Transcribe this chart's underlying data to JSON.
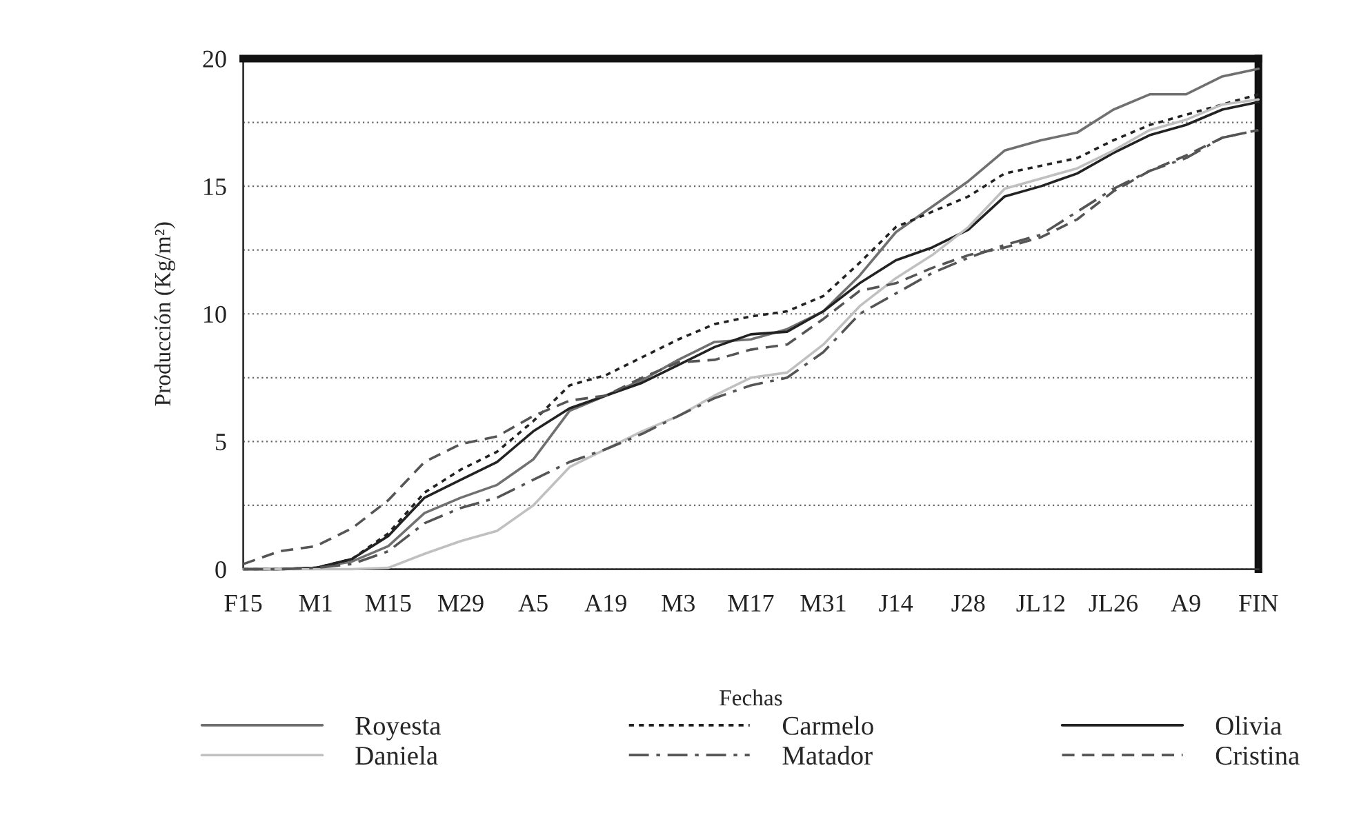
{
  "chart_data": {
    "type": "line",
    "xlabel": "Fechas",
    "ylabel": "Producción (Kg/m²)",
    "categories": [
      "F15",
      null,
      "M1",
      null,
      "M15",
      null,
      "M29",
      null,
      "A5",
      null,
      "A19",
      null,
      "M3",
      null,
      "M17",
      null,
      "M31",
      null,
      "J14",
      null,
      "J28",
      null,
      "JL12",
      null,
      "JL26",
      null,
      "A9",
      null,
      "FIN"
    ],
    "series": [
      {
        "name": "Royesta",
        "color": "#707070",
        "line_style": "solid",
        "values": [
          0,
          0,
          0.05,
          0.3,
          0.9,
          2.2,
          2.8,
          3.3,
          4.3,
          6.2,
          6.8,
          7.4,
          8.2,
          8.9,
          9.0,
          9.4,
          10.1,
          11.5,
          13.2,
          14.2,
          15.2,
          16.4,
          16.8,
          17.1,
          18.0,
          18.6,
          18.6,
          19.3,
          19.6
        ]
      },
      {
        "name": "Carmelo",
        "color": "#222222",
        "line_style": "dotted",
        "values": [
          0,
          0,
          0.05,
          0.4,
          1.4,
          3.0,
          3.9,
          4.6,
          5.8,
          7.2,
          7.6,
          8.3,
          9.0,
          9.6,
          9.9,
          10.1,
          10.7,
          12.0,
          13.4,
          14.0,
          14.6,
          15.5,
          15.8,
          16.1,
          16.8,
          17.4,
          17.8,
          18.2,
          18.6
        ]
      },
      {
        "name": "Olivia",
        "color": "#222222",
        "line_style": "solid",
        "values": [
          0,
          0,
          0.05,
          0.4,
          1.3,
          2.8,
          3.5,
          4.2,
          5.4,
          6.3,
          6.8,
          7.3,
          8.0,
          8.7,
          9.2,
          9.3,
          10.1,
          11.2,
          12.1,
          12.6,
          13.3,
          14.6,
          15.0,
          15.5,
          16.3,
          17.0,
          17.4,
          18.0,
          18.3
        ]
      },
      {
        "name": "Daniela",
        "color": "#c0c0c0",
        "line_style": "solid",
        "values": [
          0,
          0,
          0,
          0,
          0.05,
          0.6,
          1.1,
          1.5,
          2.5,
          4.0,
          4.7,
          5.4,
          6.0,
          6.8,
          7.5,
          7.7,
          8.8,
          10.3,
          11.4,
          12.3,
          13.4,
          14.9,
          15.3,
          15.7,
          16.4,
          17.2,
          17.6,
          18.2,
          18.4
        ]
      },
      {
        "name": "Matador",
        "color": "#555555",
        "line_style": "dashdot",
        "values": [
          0,
          0,
          0.05,
          0.2,
          0.7,
          1.8,
          2.4,
          2.8,
          3.5,
          4.2,
          4.7,
          5.3,
          6.0,
          6.7,
          7.2,
          7.5,
          8.5,
          10.0,
          10.8,
          11.6,
          12.2,
          12.7,
          13.1,
          14.0,
          14.9,
          15.6,
          16.1,
          16.9,
          17.2
        ]
      },
      {
        "name": "Cristina",
        "color": "#555555",
        "line_style": "dashed",
        "values": [
          0.2,
          0.7,
          0.9,
          1.6,
          2.7,
          4.2,
          4.9,
          5.2,
          6.0,
          6.6,
          6.8,
          7.5,
          8.1,
          8.2,
          8.6,
          8.8,
          9.8,
          10.9,
          11.2,
          11.8,
          12.3,
          12.6,
          13.0,
          13.7,
          14.8,
          15.6,
          16.2,
          16.9,
          17.2
        ]
      }
    ],
    "ylim": [
      0,
      20
    ],
    "yticks": [
      0,
      {
        "value": 2.5,
        "label": null
      },
      5,
      {
        "value": 7.5,
        "label": null
      },
      10,
      {
        "value": 12.5,
        "label": null
      },
      15,
      {
        "value": 17.5,
        "label": null
      },
      20
    ],
    "grid": "y",
    "legend": "bottom"
  }
}
